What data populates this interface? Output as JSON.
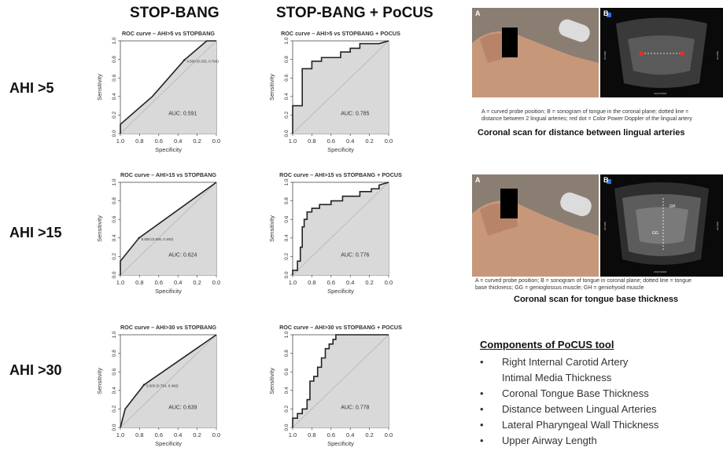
{
  "headers": {
    "stopbang": "STOP-BANG",
    "stopbang_pocus": "STOP-BANG + PoCUS"
  },
  "rows": [
    "AHI >5",
    "AHI >15",
    "AHI >30"
  ],
  "chart_data": [
    {
      "type": "line",
      "title": "ROC curve – AHI>5 vs STOPBANG",
      "xlabel": "Specificity",
      "ylabel": "Sensitivity",
      "xlim": [
        1.0,
        0.0
      ],
      "ylim": [
        0.0,
        1.0
      ],
      "xticks": [
        "1.0",
        "0.8",
        "0.6",
        "0.4",
        "0.2",
        "0.0"
      ],
      "yticks": [
        "0.0",
        "0.2",
        "0.4",
        "0.6",
        "0.8",
        "1.0"
      ],
      "x": [
        1.0,
        1.0,
        0.667,
        0.333,
        0.1,
        0.0
      ],
      "y": [
        0.0,
        0.1,
        0.4,
        0.794,
        1.0,
        1.0
      ],
      "annotation": "4.500 (0.333, 0.794)",
      "annotation_at": [
        0.333,
        0.794
      ],
      "auc": "AUC: 0.591"
    },
    {
      "type": "line",
      "title": "ROC curve – AHI>5 vs STOPBANG + POCUS",
      "xlabel": "Specificity",
      "ylabel": "Sensitivity",
      "xlim": [
        1.0,
        0.0
      ],
      "ylim": [
        0.0,
        1.0
      ],
      "xticks": [
        "1.0",
        "0.8",
        "0.6",
        "0.4",
        "0.2",
        "0.0"
      ],
      "yticks": [
        "0.0",
        "0.2",
        "0.4",
        "0.6",
        "0.8",
        "1.0"
      ],
      "x": [
        1.0,
        1.0,
        0.9,
        0.9,
        0.8,
        0.8,
        0.7,
        0.7,
        0.5,
        0.5,
        0.4,
        0.4,
        0.3,
        0.3,
        0.1,
        0.0
      ],
      "y": [
        0.0,
        0.3,
        0.3,
        0.7,
        0.7,
        0.78,
        0.78,
        0.82,
        0.82,
        0.88,
        0.88,
        0.92,
        0.92,
        0.97,
        0.97,
        1.0
      ],
      "auc": "AUC: 0.785"
    },
    {
      "type": "line",
      "title": "ROC curve – AHI>15 vs STOPBANG",
      "xlabel": "Specificity",
      "ylabel": "Sensitivity",
      "xlim": [
        1.0,
        0.0
      ],
      "ylim": [
        0.0,
        1.0
      ],
      "xticks": [
        "1.0",
        "0.8",
        "0.6",
        "0.4",
        "0.2",
        "0.0"
      ],
      "yticks": [
        "0.0",
        "0.2",
        "0.4",
        "0.6",
        "0.8",
        "1.0"
      ],
      "x": [
        1.0,
        1.0,
        0.806,
        0.0
      ],
      "y": [
        0.0,
        0.15,
        0.4,
        1.0
      ],
      "annotation": "5.500 (0.806, 0.400)",
      "annotation_at": [
        0.806,
        0.4
      ],
      "auc": "AUC: 0.624"
    },
    {
      "type": "line",
      "title": "ROC curve – AHI>15 vs STOPBANG + POCUS",
      "xlabel": "Specificity",
      "ylabel": "Sensitivity",
      "xlim": [
        1.0,
        0.0
      ],
      "ylim": [
        0.0,
        1.0
      ],
      "xticks": [
        "1.0",
        "0.8",
        "0.6",
        "0.4",
        "0.2",
        "0.0"
      ],
      "yticks": [
        "0.0",
        "0.2",
        "0.4",
        "0.6",
        "0.8",
        "1.0"
      ],
      "x": [
        1.0,
        1.0,
        0.95,
        0.95,
        0.92,
        0.92,
        0.9,
        0.9,
        0.88,
        0.88,
        0.85,
        0.85,
        0.8,
        0.8,
        0.72,
        0.72,
        0.6,
        0.6,
        0.48,
        0.48,
        0.3,
        0.3,
        0.18,
        0.18,
        0.1,
        0.1,
        0.0
      ],
      "y": [
        0.0,
        0.05,
        0.05,
        0.15,
        0.15,
        0.3,
        0.3,
        0.52,
        0.52,
        0.6,
        0.6,
        0.68,
        0.68,
        0.72,
        0.72,
        0.76,
        0.76,
        0.8,
        0.8,
        0.85,
        0.85,
        0.9,
        0.9,
        0.93,
        0.93,
        0.97,
        1.0
      ],
      "auc": "AUC: 0.776"
    },
    {
      "type": "line",
      "title": "ROC curve – AHI>30 vs STOPBANG",
      "xlabel": "Specificity",
      "ylabel": "Sensitivity",
      "xlim": [
        1.0,
        0.0
      ],
      "ylim": [
        0.0,
        1.0
      ],
      "xticks": [
        "1.0",
        "0.8",
        "0.6",
        "0.4",
        "0.2",
        "0.0"
      ],
      "yticks": [
        "0.0",
        "0.2",
        "0.4",
        "0.6",
        "0.8",
        "1.0"
      ],
      "x": [
        1.0,
        0.95,
        0.754,
        0.0
      ],
      "y": [
        0.0,
        0.2,
        0.46,
        1.0
      ],
      "annotation": "5.500 (0.754, 0.460)",
      "annotation_at": [
        0.754,
        0.46
      ],
      "auc": "AUC: 0.639"
    },
    {
      "type": "line",
      "title": "ROC curve – AHI>30 vs STOPBANG + POCUS",
      "xlabel": "Specificity",
      "ylabel": "Sensitivity",
      "xlim": [
        1.0,
        0.0
      ],
      "ylim": [
        0.0,
        1.0
      ],
      "xticks": [
        "1.0",
        "0.8",
        "0.6",
        "0.4",
        "0.2",
        "0.0"
      ],
      "yticks": [
        "0.0",
        "0.2",
        "0.4",
        "0.6",
        "0.8",
        "1.0"
      ],
      "x": [
        1.0,
        1.0,
        0.95,
        0.95,
        0.9,
        0.9,
        0.85,
        0.85,
        0.82,
        0.82,
        0.78,
        0.78,
        0.74,
        0.74,
        0.7,
        0.7,
        0.66,
        0.66,
        0.62,
        0.62,
        0.58,
        0.58,
        0.55,
        0.55,
        0.0
      ],
      "y": [
        0.0,
        0.1,
        0.1,
        0.15,
        0.15,
        0.2,
        0.2,
        0.3,
        0.3,
        0.5,
        0.5,
        0.55,
        0.55,
        0.65,
        0.65,
        0.75,
        0.75,
        0.85,
        0.85,
        0.9,
        0.9,
        0.95,
        0.95,
        1.0,
        1.0
      ],
      "auc": "AUC: 0.778"
    }
  ],
  "figures": [
    {
      "label_a": "A",
      "label_b": "B",
      "caption_line1": "A = curved probe position; B = sonogram of tongue in the coronal plane; dotted line =",
      "caption_line2": "distance between 2 lingual arteries; red dot = Color Power Doppler of the lingual artery",
      "title": "Coronal scan for distance between lingual arteries",
      "scan_side_left": "lateral",
      "scan_side_right": "lateral",
      "scan_bottom": "cephalad"
    },
    {
      "label_a": "A",
      "label_b": "B",
      "caption_line1": "A = curved probe position; B = sonogram of tongue in coronal plane; dotted line = tongue",
      "caption_line2": "base thickness; GG = genioglossus muscle; GH = geniohyoid muscle",
      "title": "Coronal scan for tongue base thickness",
      "scan_side_left": "lateral",
      "scan_side_right": "lateral",
      "scan_bottom": "cephalad",
      "mark_gh": "GH",
      "mark_gg": "GG"
    }
  ],
  "components": {
    "title": "Components of PoCUS tool",
    "items": [
      "Right Internal Carotid Artery",
      "Intimal Media Thickness",
      "Coronal Tongue Base Thickness",
      "Distance between Lingual Arteries",
      "Lateral Pharyngeal Wall Thickness",
      "Upper Airway Length"
    ],
    "bullet": "•",
    "bulleted": [
      true,
      false,
      true,
      true,
      true,
      true
    ]
  },
  "colors": {
    "curve": "#222222",
    "fill": "#d9d9d9",
    "diagonal": "#b0b0b0",
    "scan_bg": "#0a0a0a",
    "red_dot": "#e0302a"
  }
}
